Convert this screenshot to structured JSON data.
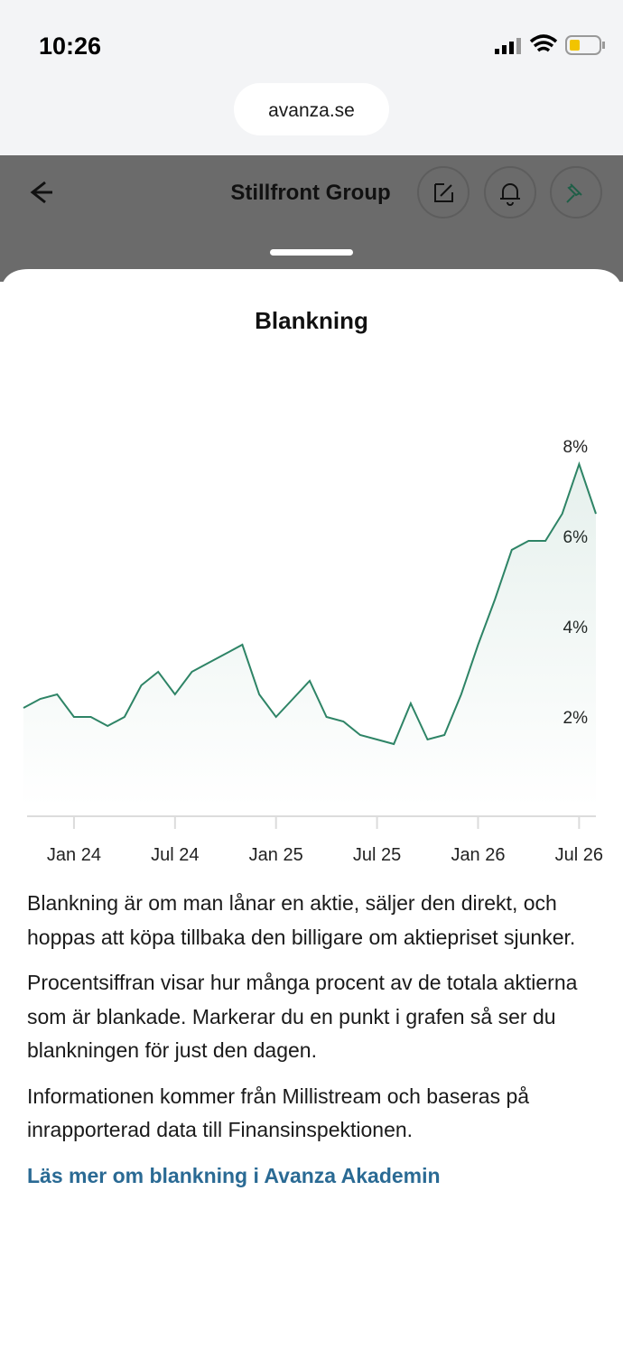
{
  "status_bar": {
    "time": "10:26"
  },
  "browser": {
    "url": "avanza.se"
  },
  "header": {
    "title": "Stillfront Group"
  },
  "sheet": {
    "title": "Blankning",
    "paragraphs": [
      "Blankning är om man lånar en aktie, säljer den direkt, och hoppas att köpa tillbaka den billigare om aktiepriset sjunker.",
      "Procentsiffran visar hur många procent av de totala aktierna som är blankade. Markerar du en punkt i grafen så ser du blankningen för just den dagen.",
      "Informationen kommer från Millistream och baseras på inrapporterad data till Finansinspektionen."
    ],
    "link": "Läs mer om blankning i Avanza Akademin"
  },
  "chart_data": {
    "type": "line",
    "color": "#2e8466",
    "x": [
      "2023-10",
      "2023-11",
      "2023-12",
      "2024-01",
      "2024-02",
      "2024-03",
      "2024-04",
      "2024-05",
      "2024-06",
      "2024-07",
      "2024-08",
      "2024-09",
      "2024-10",
      "2024-11",
      "2024-12",
      "2025-01",
      "2025-02",
      "2025-03",
      "2025-04",
      "2025-05",
      "2025-06",
      "2025-07",
      "2025-08",
      "2025-09",
      "2025-10",
      "2025-11",
      "2025-12",
      "2026-01",
      "2026-02",
      "2026-03",
      "2026-04",
      "2026-05",
      "2026-06",
      "2026-07",
      "2026-08"
    ],
    "values": [
      2.2,
      2.4,
      2.5,
      2.0,
      2.0,
      1.8,
      2.0,
      2.7,
      3.0,
      2.5,
      3.0,
      3.2,
      3.4,
      3.6,
      2.5,
      2.0,
      2.4,
      2.8,
      2.0,
      1.9,
      1.6,
      1.5,
      1.4,
      2.3,
      1.5,
      1.6,
      2.5,
      3.6,
      4.6,
      5.7,
      5.9,
      5.9,
      6.5,
      7.6,
      6.5
    ],
    "xlim": [
      "2023-10",
      "2026-08"
    ],
    "xticks": [
      {
        "value": "2024-01",
        "label": "Jan 24"
      },
      {
        "value": "2024-07",
        "label": "Jul 24"
      },
      {
        "value": "2025-01",
        "label": "Jan 25"
      },
      {
        "value": "2025-07",
        "label": "Jul 25"
      },
      {
        "value": "2026-01",
        "label": "Jan 26"
      },
      {
        "value": "2026-07",
        "label": "Jul 26"
      }
    ],
    "ylim": [
      0,
      8
    ],
    "yticks": [
      {
        "value": 2,
        "label": "2%"
      },
      {
        "value": 4,
        "label": "4%"
      },
      {
        "value": 6,
        "label": "6%"
      },
      {
        "value": 8,
        "label": "8%"
      }
    ]
  }
}
